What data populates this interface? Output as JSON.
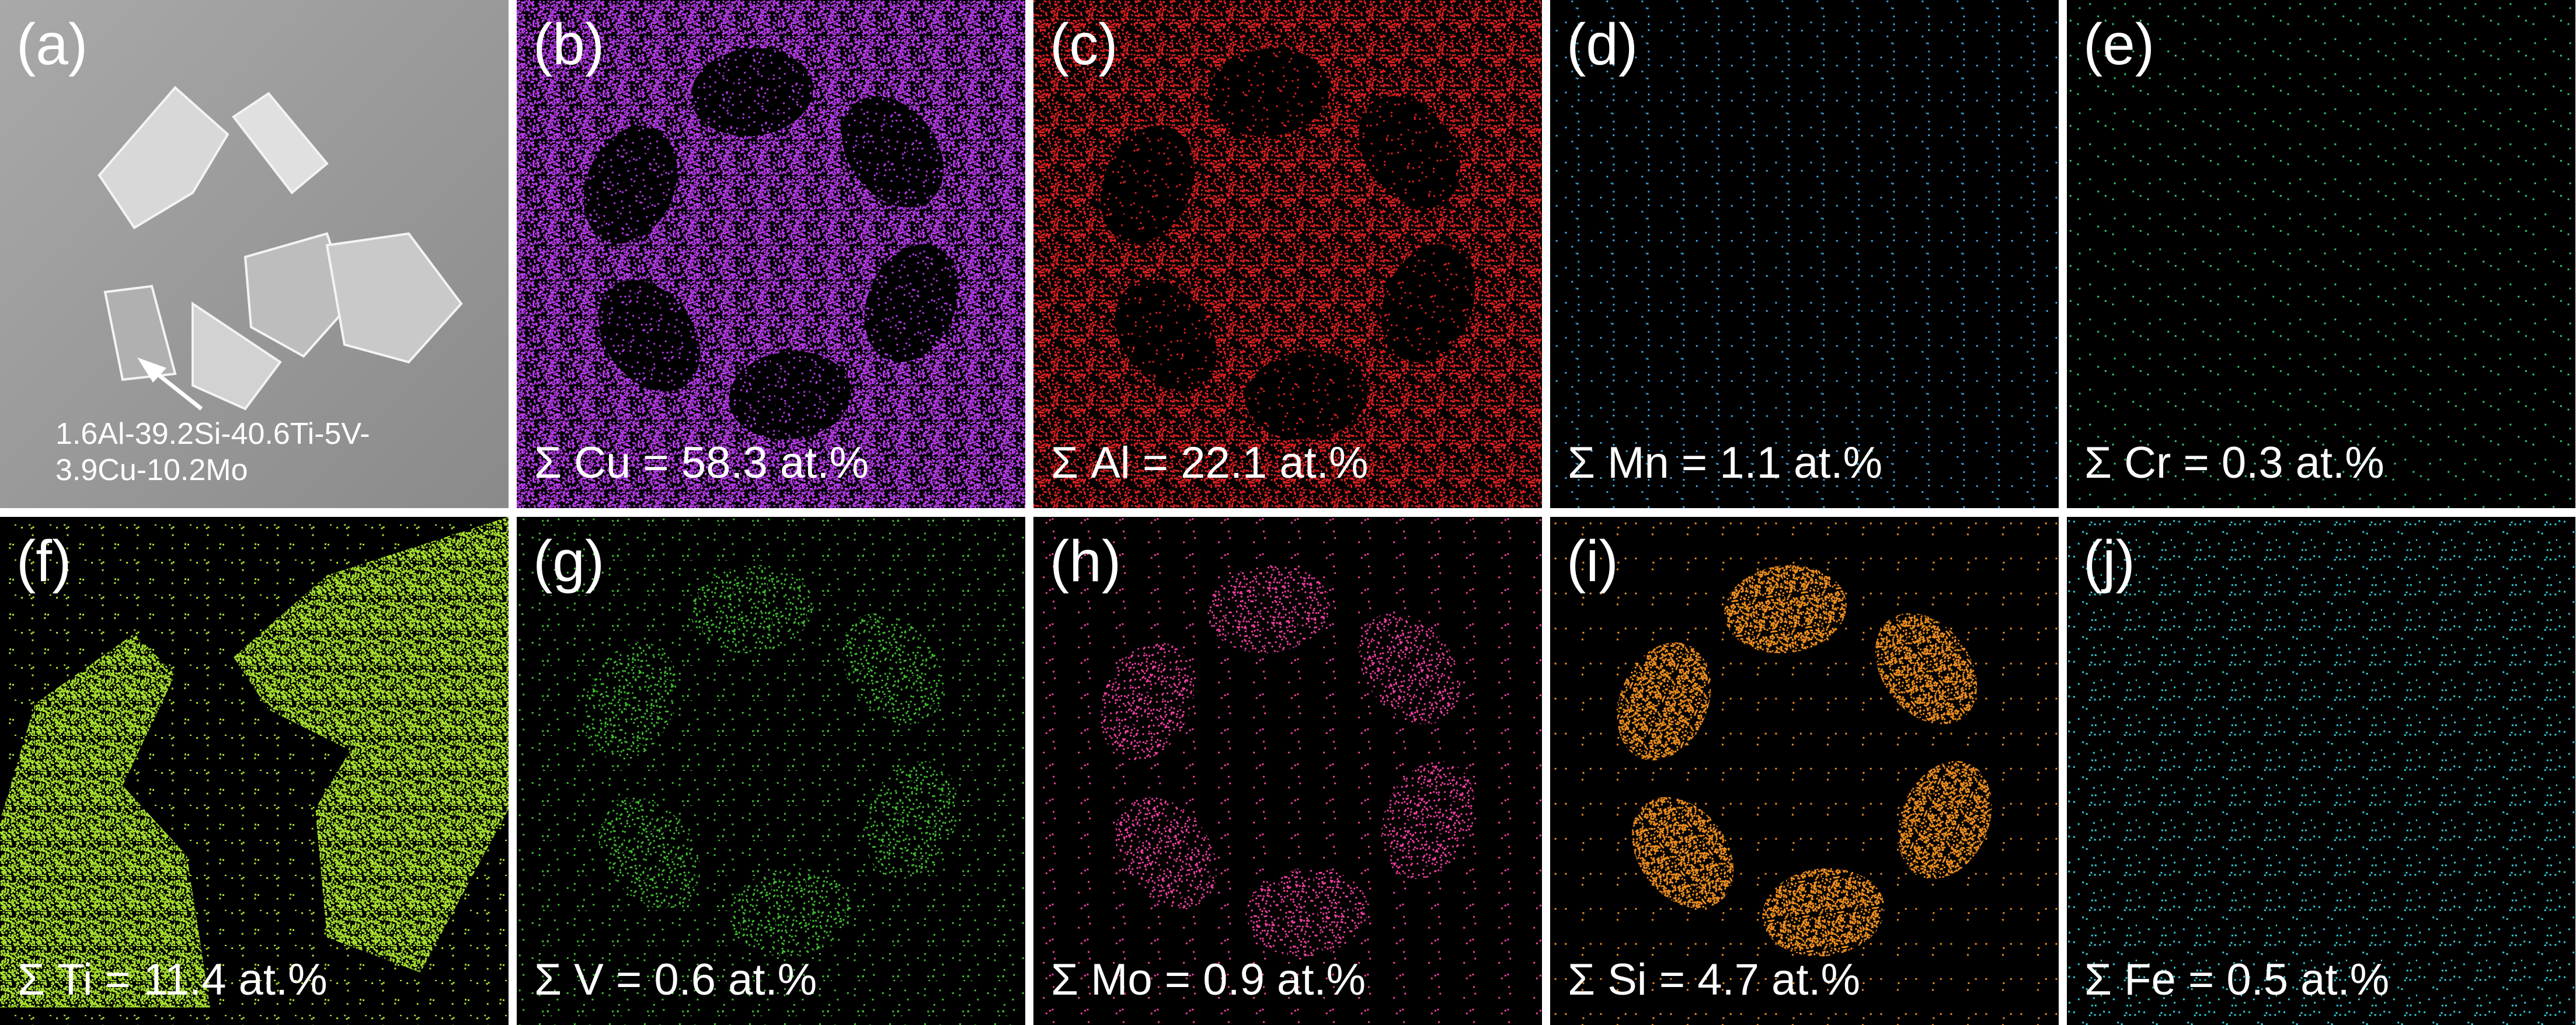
{
  "panels": [
    {
      "label": "(a)",
      "annotation": [
        "1.6Al-39.2Si-40.6Ti-5V-",
        "3.9Cu-10.2Mo"
      ]
    },
    {
      "label": "(b)",
      "caption": "Σ Cu = 58.3 at.%"
    },
    {
      "label": "(c)",
      "caption": "Σ Al = 22.1 at.%"
    },
    {
      "label": "(d)",
      "caption": "Σ Mn = 1.1 at.%"
    },
    {
      "label": "(e)",
      "caption": "Σ Cr = 0.3 at.%"
    },
    {
      "label": "(f)",
      "caption": "Σ Ti = 11.4 at.%"
    },
    {
      "label": "(g)",
      "caption": "Σ V = 0.6 at.%"
    },
    {
      "label": "(h)",
      "caption": "Σ Mo = 0.9 at.%"
    },
    {
      "label": "(i)",
      "caption": "Σ Si = 4.7 at.%"
    },
    {
      "label": "(j)",
      "caption": "Σ Fe = 0.5 at.%"
    }
  ]
}
